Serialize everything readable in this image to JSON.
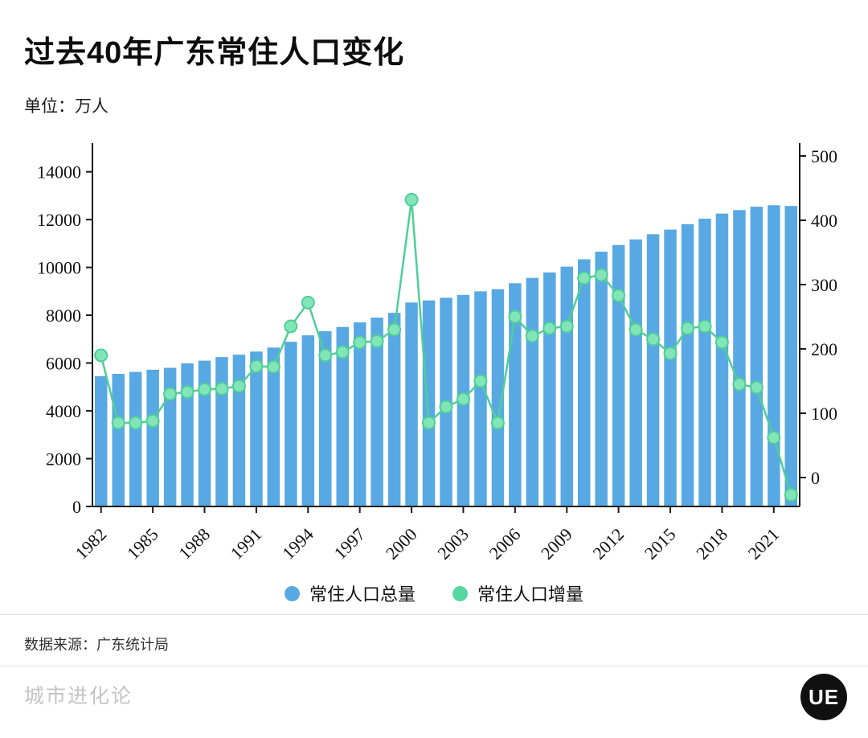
{
  "title": "过去40年广东常住人口变化",
  "unit_label": "单位：万人",
  "source_label": "数据来源：广东统计局",
  "footer_brand": "城市进化论",
  "logo": {
    "text": "UE"
  },
  "colors": {
    "bar": "#58A9E3",
    "line": "#4FCE96",
    "marker_fill": "#82E5BA",
    "axis": "#1a1a1a"
  },
  "legend": [
    {
      "label": "常住人口总量",
      "color": "#58A9E3"
    },
    {
      "label": "常住人口增量",
      "color": "#55D79E"
    }
  ],
  "chart_data": {
    "type": "bar",
    "title": "过去40年广东常住人口变化",
    "ylabel_unit": "万人",
    "x": [
      1982,
      1983,
      1984,
      1985,
      1986,
      1987,
      1988,
      1989,
      1990,
      1991,
      1992,
      1993,
      1994,
      1995,
      1996,
      1997,
      1998,
      1999,
      2000,
      2001,
      2002,
      2003,
      2004,
      2005,
      2006,
      2007,
      2008,
      2009,
      2010,
      2011,
      2012,
      2013,
      2014,
      2015,
      2016,
      2017,
      2018,
      2019,
      2020,
      2021,
      2022
    ],
    "series": [
      {
        "name": "常住人口总量",
        "type": "bar",
        "axis": "left",
        "values": [
          5450,
          5550,
          5630,
          5720,
          5800,
          5990,
          6100,
          6250,
          6350,
          6480,
          6650,
          6890,
          7160,
          7330,
          7510,
          7700,
          7900,
          8100,
          8530,
          8620,
          8730,
          8850,
          9000,
          9090,
          9340,
          9560,
          9790,
          10030,
          10340,
          10660,
          10940,
          11170,
          11390,
          11580,
          11810,
          12040,
          12250,
          12400,
          12540,
          12600,
          12570
        ]
      },
      {
        "name": "常住人口增量",
        "type": "line",
        "axis": "right",
        "values": [
          190,
          85,
          85,
          88,
          130,
          133,
          137,
          138,
          142,
          173,
          172,
          235,
          272,
          190,
          195,
          210,
          212,
          230,
          432,
          85,
          110,
          122,
          150,
          85,
          250,
          220,
          232,
          235,
          310,
          315,
          283,
          230,
          215,
          193,
          232,
          235,
          210,
          145,
          140,
          62,
          -27
        ]
      }
    ],
    "left_axis": {
      "ticks": [
        0,
        2000,
        4000,
        6000,
        8000,
        10000,
        12000,
        14000
      ],
      "range": [
        0,
        15200
      ]
    },
    "right_axis": {
      "ticks": [
        0,
        100,
        200,
        300,
        400,
        500
      ],
      "range": [
        -45,
        520
      ]
    },
    "x_tick_labels": [
      1982,
      1985,
      1988,
      1991,
      1994,
      1997,
      2000,
      2003,
      2006,
      2009,
      2012,
      2015,
      2018,
      2021
    ],
    "grid": false,
    "legend_position": "bottom-center"
  }
}
